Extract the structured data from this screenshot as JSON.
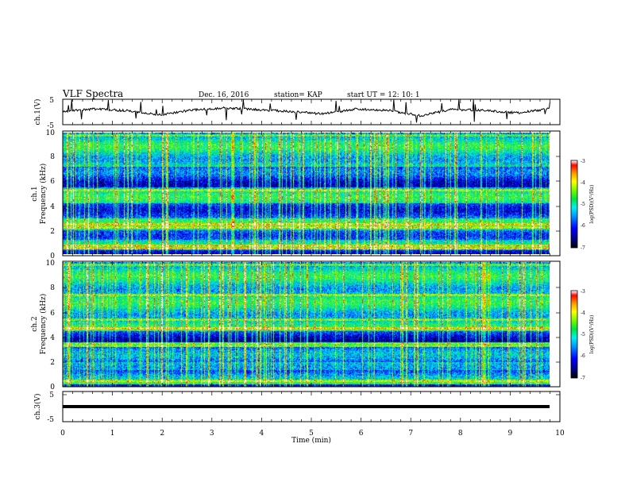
{
  "header": {
    "title": "VLF Spectra",
    "date": "Dec. 16, 2016",
    "station": "station= KAP",
    "start": "start  UT  =   12: 10: 1"
  },
  "colors": {
    "trace": "#000000",
    "colormap": [
      "#000000",
      "#00008b",
      "#0000ff",
      "#00bfff",
      "#00ffff",
      "#00ff00",
      "#7fff00",
      "#ffff00",
      "#ffa500",
      "#ff0000",
      "#ffffff"
    ]
  },
  "chart_data": [
    {
      "type": "line",
      "name": "ch1-waveform",
      "ylabel": "ch.1(V)",
      "ylim": [
        -5,
        5
      ],
      "yticks": [
        "5",
        "-5"
      ],
      "xlim": [
        0,
        10
      ],
      "description_level_volts": [
        0.3,
        1.2,
        0.5,
        -1.1,
        0.8,
        1.6,
        0.9,
        0.2,
        -0.8,
        1.1,
        0.7,
        -1.5,
        1.0,
        0.6,
        -0.4,
        1.3
      ]
    },
    {
      "type": "heatmap",
      "name": "ch1-spectrogram",
      "ylabel": "ch.1",
      "ylabel2": "Frequency  (kHz)",
      "ylim": [
        0,
        10
      ],
      "yticks": [
        "0",
        "2",
        "4",
        "6",
        "8",
        "10"
      ],
      "xlim": [
        0,
        10
      ],
      "colorbar": {
        "label": "log(PSD)(V²/Hz)",
        "range": [
          -7,
          -3
        ],
        "ticks": [
          "-3",
          "-4",
          "-5",
          "-6",
          "-7"
        ]
      }
    },
    {
      "type": "heatmap",
      "name": "ch2-spectrogram",
      "ylabel": "ch.2",
      "ylabel2": "Frequency  (kHz)",
      "ylim": [
        0,
        10
      ],
      "yticks": [
        "0",
        "2",
        "4",
        "6",
        "8",
        "10"
      ],
      "xlim": [
        0,
        10
      ],
      "colorbar": {
        "label": "log(PSD)(V²/Hz)",
        "range": [
          -7,
          -3
        ],
        "ticks": [
          "-3",
          "-4",
          "-5",
          "-6",
          "-7"
        ]
      }
    },
    {
      "type": "line",
      "name": "ch3-waveform",
      "ylabel": "ch.3(V)",
      "ylim": [
        -5,
        5
      ],
      "yticks": [
        "5",
        "-5"
      ],
      "xlim": [
        0,
        10
      ],
      "level_volts": 0.0
    }
  ],
  "xaxis": {
    "label": "Time  (min)",
    "ticks": [
      "0",
      "1",
      "2",
      "3",
      "4",
      "5",
      "6",
      "7",
      "8",
      "9",
      "10"
    ]
  }
}
